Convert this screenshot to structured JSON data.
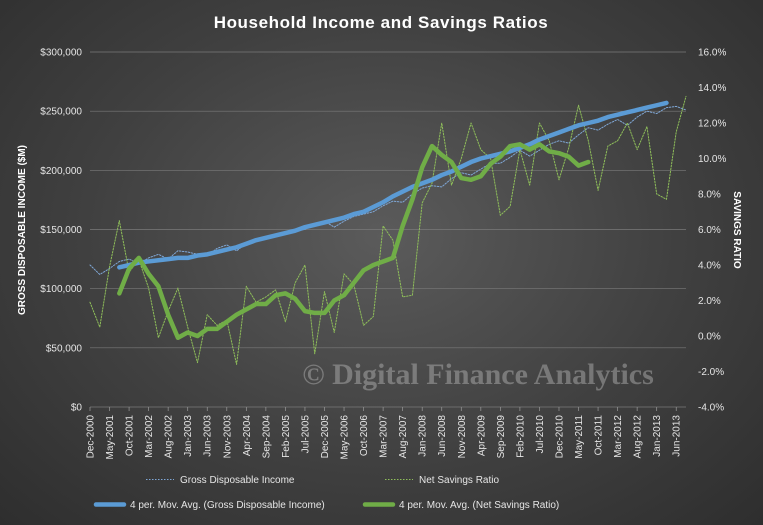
{
  "chart_data": {
    "type": "line",
    "title": "Household Income and Savings Ratios",
    "y_left_label": "GROSS DISPOSABLE INCOME ($M)",
    "y_right_label": "SAVINGS RATIO",
    "y_left_range": [
      0,
      300000
    ],
    "y_right_range": [
      -4.0,
      16.0
    ],
    "y_left_ticks": [
      "$0",
      "$50,000",
      "$100,000",
      "$150,000",
      "$200,000",
      "$250,000",
      "$300,000"
    ],
    "y_right_ticks": [
      "-4.0%",
      "-2.0%",
      "0.0%",
      "2.0%",
      "4.0%",
      "6.0%",
      "8.0%",
      "10.0%",
      "12.0%",
      "14.0%",
      "16.0%"
    ],
    "x_tick_labels": [
      "Dec-2000",
      "May-2001",
      "Oct-2001",
      "Mar-2002",
      "Aug-2002",
      "Jan-2003",
      "Jun-2003",
      "Nov-2003",
      "Apr-2004",
      "Sep-2004",
      "Feb-2005",
      "Jul-2005",
      "Dec-2005",
      "May-2006",
      "Oct-2006",
      "Mar-2007",
      "Aug-2007",
      "Jan-2008",
      "Jun-2008",
      "Nov-2008",
      "Apr-2009",
      "Sep-2009",
      "Feb-2010",
      "Jul-2010",
      "Dec-2010",
      "May-2011",
      "Oct-2011",
      "Mar-2012",
      "Aug-2012",
      "Jan-2013",
      "Jun-2013"
    ],
    "grid": true,
    "legend_position": "bottom",
    "watermark": "© Digital Finance Analytics",
    "series": [
      {
        "name": "Gross Disposable Income",
        "axis": "left",
        "style": "dotted",
        "color": "#7fa7d6",
        "values": [
          120000,
          112000,
          117000,
          123000,
          125000,
          121000,
          126000,
          129000,
          125000,
          132000,
          131000,
          129000,
          128000,
          134000,
          137000,
          132000,
          138000,
          142000,
          143000,
          145000,
          148000,
          149000,
          150000,
          155000,
          157000,
          152000,
          157000,
          161000,
          163000,
          165000,
          170000,
          174000,
          173000,
          180000,
          185000,
          187000,
          186000,
          193000,
          198000,
          196000,
          201000,
          206000,
          206000,
          211000,
          217000,
          212000,
          217000,
          222000,
          225000,
          223000,
          230000,
          236000,
          234000,
          239000,
          243000,
          238000,
          245000,
          250000,
          248000,
          253000,
          254000,
          251000
        ]
      },
      {
        "name": "Net Savings Ratio",
        "axis": "right",
        "style": "dotted",
        "color": "#8fbf5a",
        "values": [
          1.9,
          0.5,
          3.9,
          6.5,
          3.6,
          4.3,
          2.7,
          -0.1,
          1.4,
          2.7,
          0.5,
          -1.5,
          1.2,
          0.6,
          0.9,
          -1.6,
          2.8,
          1.9,
          2.2,
          2.6,
          0.8,
          3.0,
          4.0,
          -1.0,
          2.5,
          0.2,
          3.5,
          2.9,
          0.6,
          1.1,
          6.2,
          5.4,
          2.2,
          2.3,
          7.5,
          8.6,
          12.0,
          8.5,
          10.0,
          12.0,
          10.5,
          10.0,
          6.8,
          7.3,
          10.5,
          8.5,
          12.0,
          11.0,
          8.8,
          10.6,
          13.0,
          11.0,
          8.2,
          10.7,
          11.0,
          12.0,
          10.5,
          11.8,
          8.0,
          7.7,
          11.5,
          13.5
        ]
      },
      {
        "name": "4 per. Mov. Avg. (Gross Disposable Income)",
        "axis": "left",
        "style": "thick",
        "color": "#5b9bd5",
        "start_index": 3,
        "values": [
          118000,
          120000,
          122000,
          123000,
          124000,
          125000,
          126000,
          126000,
          128000,
          129000,
          131000,
          133000,
          135000,
          138000,
          141000,
          143000,
          145000,
          147000,
          149000,
          152000,
          154000,
          156000,
          158000,
          160000,
          163000,
          165000,
          169000,
          173000,
          178000,
          182000,
          186000,
          189000,
          192000,
          196000,
          199000,
          203000,
          207000,
          210000,
          212000,
          214000,
          216000,
          219000,
          222000,
          226000,
          229000,
          232000,
          235000,
          238000,
          240000,
          242000,
          245000,
          247000,
          249000,
          251000,
          253000,
          255000,
          257000
        ]
      },
      {
        "name": "4 per. Mov. Avg. (Net Savings Ratio)",
        "axis": "right",
        "style": "thick",
        "color": "#70ad47",
        "start_index": 3,
        "values": [
          2.4,
          3.8,
          4.4,
          3.5,
          2.8,
          1.2,
          -0.1,
          0.2,
          0.0,
          0.4,
          0.4,
          0.8,
          1.2,
          1.5,
          1.8,
          1.8,
          2.3,
          2.4,
          2.1,
          1.4,
          1.3,
          1.3,
          2.0,
          2.3,
          3.0,
          3.7,
          4.0,
          4.2,
          4.4,
          6.2,
          7.7,
          9.5,
          10.7,
          10.2,
          9.8,
          8.9,
          8.8,
          9.0,
          9.7,
          10.1,
          10.7,
          10.8,
          10.5,
          10.8,
          10.4,
          10.3,
          10.1,
          9.6,
          9.8
        ]
      }
    ]
  }
}
